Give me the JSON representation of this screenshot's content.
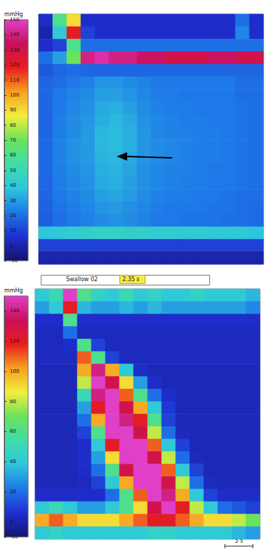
{
  "chart_data": [
    {
      "type": "heatmap",
      "tick_labels": false,
      "colorbar_label": "mmHg",
      "colorbar_range": [
        -10,
        150
      ],
      "colorbar_ticks": [
        -10,
        0,
        10,
        20,
        30,
        40,
        50,
        60,
        70,
        80,
        90,
        100,
        110,
        120,
        130,
        140,
        150
      ],
      "cells": [
        [
          5,
          60,
          90,
          5,
          5,
          5,
          5,
          5,
          5,
          5,
          5,
          5,
          5,
          5,
          20,
          5
        ],
        [
          0,
          40,
          120,
          10,
          5,
          5,
          5,
          5,
          5,
          5,
          5,
          5,
          5,
          5,
          25,
          5
        ],
        [
          5,
          10,
          60,
          20,
          20,
          20,
          20,
          20,
          20,
          20,
          20,
          20,
          20,
          20,
          20,
          20
        ],
        [
          20,
          30,
          70,
          140,
          145,
          140,
          140,
          135,
          135,
          130,
          130,
          130,
          135,
          135,
          130,
          130
        ],
        [
          15,
          18,
          20,
          18,
          18,
          18,
          18,
          18,
          18,
          18,
          18,
          18,
          18,
          18,
          18,
          18
        ],
        [
          18,
          20,
          22,
          24,
          28,
          28,
          26,
          24,
          22,
          22,
          22,
          22,
          22,
          22,
          20,
          20
        ],
        [
          18,
          22,
          24,
          26,
          30,
          30,
          28,
          25,
          23,
          23,
          22,
          22,
          22,
          22,
          20,
          20
        ],
        [
          18,
          22,
          25,
          27,
          32,
          33,
          30,
          26,
          24,
          23,
          23,
          22,
          22,
          22,
          21,
          20
        ],
        [
          18,
          23,
          26,
          28,
          33,
          35,
          32,
          27,
          25,
          24,
          23,
          23,
          22,
          22,
          21,
          20
        ],
        [
          18,
          23,
          26,
          29,
          35,
          36,
          33,
          28,
          25,
          24,
          24,
          23,
          23,
          22,
          21,
          20
        ],
        [
          19,
          24,
          27,
          29,
          35,
          36,
          33,
          28,
          26,
          25,
          24,
          23,
          23,
          22,
          21,
          20
        ],
        [
          19,
          24,
          27,
          29,
          34,
          35,
          32,
          28,
          26,
          25,
          24,
          23,
          23,
          22,
          21,
          20
        ],
        [
          19,
          23,
          26,
          28,
          33,
          34,
          31,
          27,
          25,
          24,
          24,
          23,
          22,
          22,
          21,
          20
        ],
        [
          18,
          23,
          25,
          27,
          32,
          33,
          30,
          27,
          25,
          24,
          23,
          23,
          22,
          22,
          21,
          20
        ],
        [
          18,
          22,
          24,
          26,
          30,
          31,
          29,
          26,
          24,
          23,
          23,
          22,
          22,
          21,
          20,
          20
        ],
        [
          17,
          21,
          23,
          25,
          28,
          29,
          27,
          25,
          23,
          22,
          22,
          22,
          21,
          21,
          20,
          19
        ],
        [
          16,
          20,
          22,
          24,
          26,
          27,
          26,
          24,
          22,
          22,
          21,
          21,
          21,
          20,
          20,
          19
        ],
        [
          38,
          40,
          42,
          44,
          45,
          45,
          44,
          43,
          42,
          42,
          41,
          41,
          40,
          40,
          40,
          38
        ],
        [
          10,
          10,
          10,
          10,
          10,
          10,
          10,
          10,
          10,
          10,
          10,
          10,
          10,
          10,
          10,
          10
        ],
        [
          0,
          0,
          0,
          0,
          0,
          0,
          0,
          0,
          0,
          0,
          0,
          0,
          0,
          0,
          0,
          0
        ]
      ]
    },
    {
      "type": "heatmap",
      "tick_labels": false,
      "colorbar_label": "mmHg",
      "colorbar_range": [
        -10,
        150
      ],
      "colorbar_ticks": [
        -10,
        0,
        20,
        40,
        60,
        80,
        100,
        120,
        140
      ],
      "annotations": [
        "Swallow 02",
        "2.35 s",
        "5 s"
      ],
      "cells": [
        [
          40,
          50,
          150,
          60,
          45,
          40,
          50,
          40,
          45,
          40,
          40,
          45,
          40,
          40,
          40,
          35
        ],
        [
          30,
          40,
          120,
          35,
          30,
          30,
          35,
          30,
          35,
          30,
          30,
          30,
          30,
          30,
          30,
          25
        ],
        [
          5,
          5,
          60,
          5,
          5,
          5,
          5,
          5,
          5,
          5,
          5,
          5,
          5,
          5,
          5,
          5
        ],
        [
          3,
          3,
          20,
          3,
          3,
          3,
          3,
          3,
          3,
          3,
          3,
          3,
          3,
          3,
          3,
          3
        ],
        [
          3,
          3,
          5,
          60,
          10,
          3,
          3,
          3,
          3,
          3,
          3,
          3,
          3,
          3,
          3,
          3
        ],
        [
          3,
          3,
          3,
          110,
          60,
          10,
          3,
          3,
          3,
          3,
          3,
          3,
          3,
          3,
          3,
          3
        ],
        [
          2,
          2,
          2,
          100,
          140,
          100,
          40,
          5,
          2,
          2,
          2,
          2,
          2,
          2,
          2,
          2
        ],
        [
          2,
          2,
          2,
          80,
          150,
          130,
          90,
          30,
          5,
          2,
          2,
          2,
          2,
          2,
          2,
          2
        ],
        [
          2,
          2,
          2,
          50,
          140,
          150,
          110,
          60,
          20,
          5,
          2,
          2,
          2,
          2,
          2,
          2
        ],
        [
          2,
          2,
          2,
          30,
          120,
          150,
          130,
          100,
          40,
          8,
          2,
          2,
          2,
          2,
          2,
          2
        ],
        [
          2,
          2,
          2,
          20,
          100,
          150,
          140,
          120,
          60,
          10,
          2,
          2,
          2,
          2,
          2,
          2
        ],
        [
          2,
          2,
          2,
          10,
          60,
          150,
          150,
          130,
          80,
          20,
          3,
          2,
          2,
          2,
          2,
          2
        ],
        [
          2,
          2,
          2,
          5,
          40,
          120,
          150,
          150,
          110,
          40,
          10,
          2,
          2,
          2,
          2,
          2
        ],
        [
          2,
          2,
          2,
          5,
          30,
          90,
          150,
          150,
          130,
          80,
          20,
          3,
          2,
          2,
          2,
          2
        ],
        [
          2,
          2,
          2,
          5,
          20,
          60,
          130,
          150,
          150,
          110,
          40,
          10,
          2,
          2,
          2,
          2
        ],
        [
          2,
          2,
          2,
          3,
          10,
          40,
          100,
          150,
          150,
          130,
          80,
          20,
          3,
          2,
          2,
          2
        ],
        [
          5,
          5,
          5,
          5,
          5,
          20,
          60,
          110,
          150,
          140,
          100,
          40,
          10,
          5,
          5,
          5
        ],
        [
          40,
          50,
          40,
          30,
          30,
          40,
          60,
          90,
          130,
          150,
          120,
          80,
          40,
          20,
          15,
          10
        ],
        [
          100,
          110,
          100,
          90,
          90,
          90,
          100,
          110,
          120,
          120,
          110,
          100,
          90,
          90,
          80,
          70
        ],
        [
          40,
          45,
          40,
          40,
          40,
          40,
          40,
          40,
          45,
          45,
          40,
          40,
          40,
          40,
          35,
          30
        ]
      ]
    }
  ]
}
